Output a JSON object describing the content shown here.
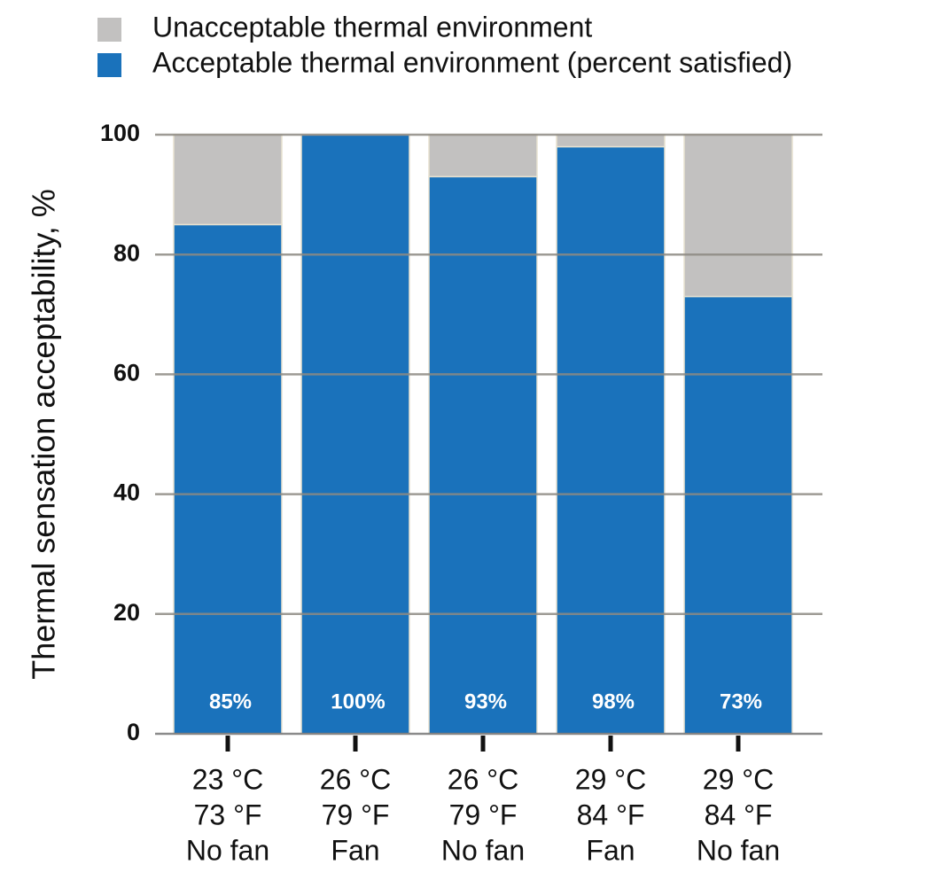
{
  "chart_data": {
    "type": "bar",
    "stacked": true,
    "ylabel": "Thermal sensation acceptability, %",
    "categories": [
      [
        "23 °C",
        "73 °F",
        "No fan"
      ],
      [
        "26 °C",
        "79 °F",
        "Fan"
      ],
      [
        "26 °C",
        "79 °F",
        "No fan"
      ],
      [
        "29 °C",
        "84 °F",
        "Fan"
      ],
      [
        "29 °C",
        "84 °F",
        "No fan"
      ]
    ],
    "series": [
      {
        "name": "Acceptable thermal environment (percent satisfied)",
        "color": "#1a72bb",
        "values": [
          85,
          100,
          93,
          98,
          73
        ],
        "value_labels": [
          "85%",
          "100%",
          "93%",
          "98%",
          "73%"
        ]
      },
      {
        "name": "Unacceptable thermal environment",
        "color": "#c2c1c0",
        "values": [
          15,
          0,
          7,
          2,
          27
        ]
      }
    ],
    "ylim": [
      0,
      100
    ],
    "yticks": [
      0,
      20,
      40,
      60,
      80,
      100
    ],
    "grid": true
  }
}
